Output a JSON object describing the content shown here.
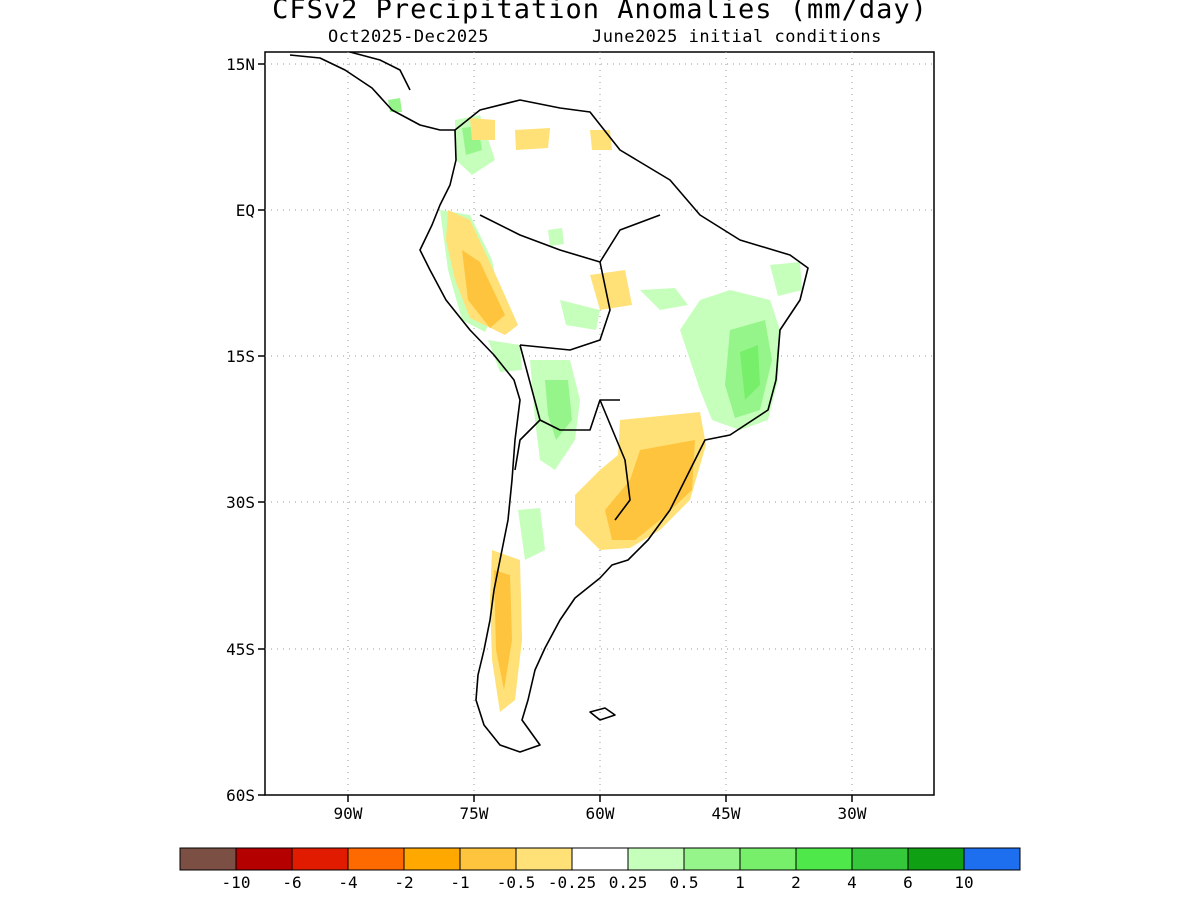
{
  "map": {
    "title": "CFSv2 Precipitation Anomalies (mm/day)",
    "period": "Oct2025-Dec2025",
    "initial_conditions": "June2025 initial conditions",
    "lat_labels": [
      "15N",
      "EQ",
      "15S",
      "30S",
      "45S",
      "60S"
    ],
    "lon_labels": [
      "90W",
      "75W",
      "60W",
      "45W",
      "30W"
    ]
  },
  "legend": {
    "colors": [
      "#7b4f43",
      "#b50000",
      "#e01b00",
      "#ff6a00",
      "#ffa800",
      "#ffc43d",
      "#ffe177",
      "#ffffff",
      "#c6ffbc",
      "#96f58a",
      "#78ef6a",
      "#4ee84a",
      "#35c83a",
      "#10a014",
      "#1e6ef0"
    ],
    "labels": [
      "-10",
      "-6",
      "-4",
      "-2",
      "-1",
      "-0.5",
      "-0.25",
      "0.25",
      "0.5",
      "1",
      "2",
      "4",
      "6",
      "10"
    ]
  }
}
